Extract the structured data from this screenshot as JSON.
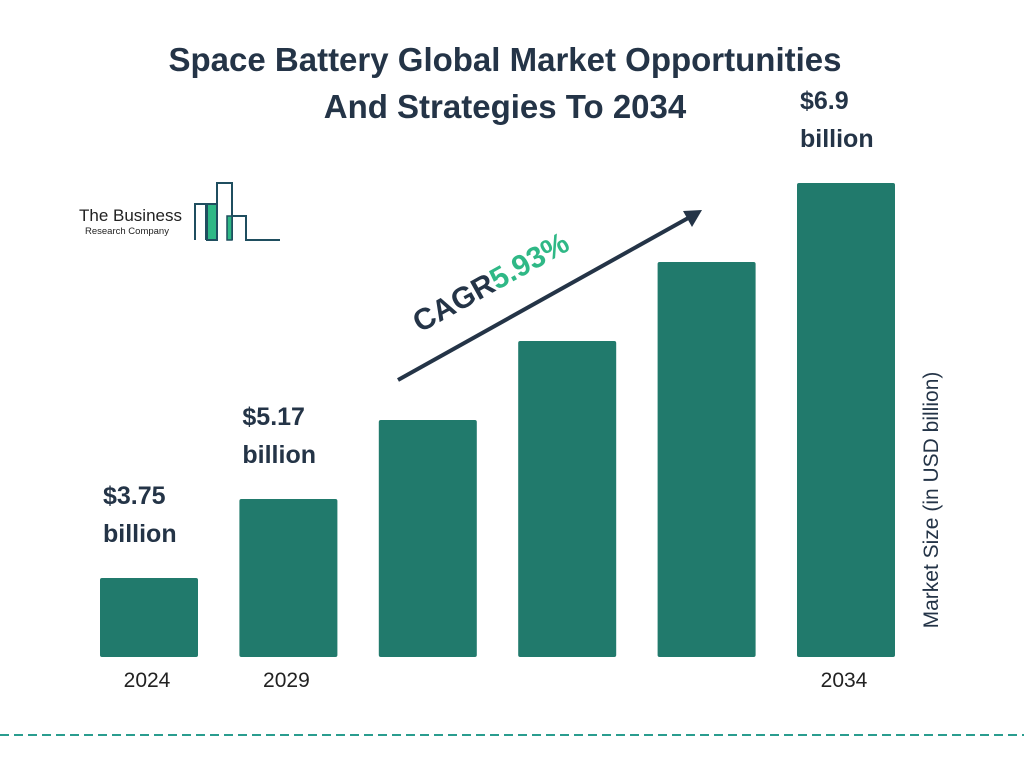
{
  "title_line1": "Space Battery Global Market Opportunities",
  "title_line2": "And Strategies To 2034",
  "logo": {
    "line1": "The Business",
    "line2": "Research Company"
  },
  "cagr": {
    "label": "CAGR",
    "value": "5.93%"
  },
  "colors": {
    "bar": "#217a6c",
    "text": "#243447",
    "accent": "#2fb886",
    "dash": "#2a9d8f"
  },
  "chart_data": {
    "type": "bar",
    "title": "Space Battery Global Market Opportunities And Strategies To 2034",
    "categories": [
      "2024",
      "2029",
      "",
      "",
      "",
      "2034"
    ],
    "values": [
      3.75,
      5.17,
      null,
      null,
      null,
      6.9
    ],
    "data_labels": [
      "$3.75 billion",
      "$5.17 billion",
      "",
      "",
      "",
      "$6.9 billion"
    ],
    "data_label_lines": [
      [
        "$3.75",
        "billion"
      ],
      [
        "$5.17",
        "billion"
      ],
      [],
      [],
      [],
      [
        "$6.9",
        "billion"
      ]
    ],
    "ylabel": "Market Size (in USD billion)",
    "xlabel": "",
    "grid": false
  }
}
